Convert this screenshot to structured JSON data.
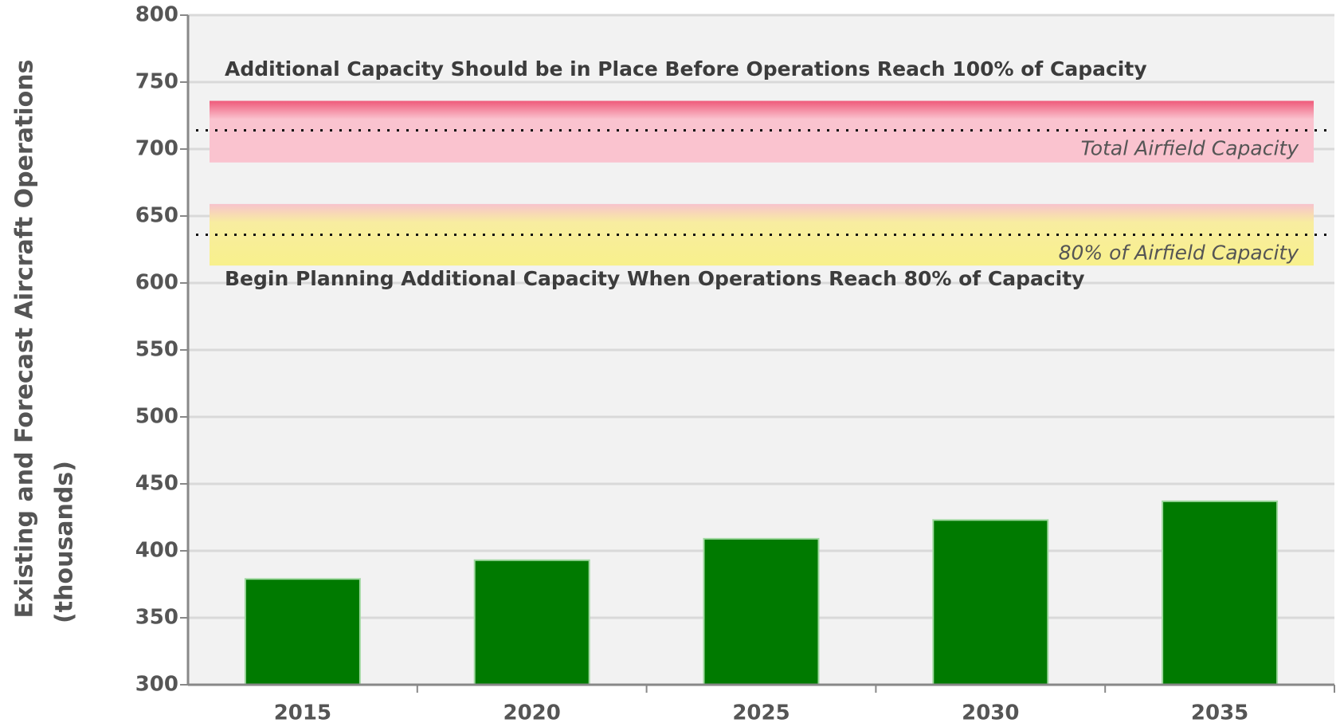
{
  "chart_data": {
    "type": "bar",
    "categories": [
      "2015",
      "2020",
      "2025",
      "2030",
      "2035"
    ],
    "values": [
      379,
      393,
      409,
      423,
      437
    ],
    "color": "#007a00",
    "ylim": [
      300,
      800
    ],
    "yticks": [
      300,
      350,
      400,
      450,
      500,
      550,
      600,
      650,
      700,
      750,
      800
    ],
    "ylabel": [
      "Existing and Forecast Aircraft Operations",
      "(thousands)"
    ],
    "grid": true,
    "reference_lines": [
      {
        "label": "Total Airfield Capacity",
        "value": 714,
        "band": [
          690,
          736
        ],
        "colors": [
          "#ef5a7a",
          "#fac3cf",
          "#fac3cf"
        ]
      },
      {
        "label": "80% of Airfield Capacity",
        "value": 636,
        "band": [
          613,
          659
        ],
        "colors": [
          "#f7c3cd",
          "#f8eda0",
          "#f8f08c"
        ]
      }
    ],
    "annotations": [
      "Additional Capacity Should be in Place Before Operations Reach 100% of Capacity",
      "Begin Planning Additional Capacity When Operations Reach 80% of Capacity"
    ]
  }
}
